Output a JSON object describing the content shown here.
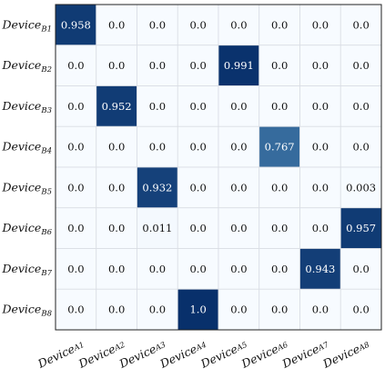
{
  "chart_data": {
    "type": "heatmap",
    "row_labels": [
      {
        "base": "Device",
        "sub": "B1"
      },
      {
        "base": "Device",
        "sub": "B2"
      },
      {
        "base": "Device",
        "sub": "B3"
      },
      {
        "base": "Device",
        "sub": "B4"
      },
      {
        "base": "Device",
        "sub": "B5"
      },
      {
        "base": "Device",
        "sub": "B6"
      },
      {
        "base": "Device",
        "sub": "B7"
      },
      {
        "base": "Device",
        "sub": "B8"
      }
    ],
    "col_labels": [
      {
        "base": "Device",
        "sub": "A1"
      },
      {
        "base": "Device",
        "sub": "A2"
      },
      {
        "base": "Device",
        "sub": "A3"
      },
      {
        "base": "Device",
        "sub": "A4"
      },
      {
        "base": "Device",
        "sub": "A5"
      },
      {
        "base": "Device",
        "sub": "A6"
      },
      {
        "base": "Device",
        "sub": "A7"
      },
      {
        "base": "Device",
        "sub": "A8"
      }
    ],
    "values": [
      [
        "0.958",
        "0.0",
        "0.0",
        "0.0",
        "0.0",
        "0.0",
        "0.0",
        "0.0"
      ],
      [
        "0.0",
        "0.0",
        "0.0",
        "0.0",
        "0.991",
        "0.0",
        "0.0",
        "0.0"
      ],
      [
        "0.0",
        "0.952",
        "0.0",
        "0.0",
        "0.0",
        "0.0",
        "0.0",
        "0.0"
      ],
      [
        "0.0",
        "0.0",
        "0.0",
        "0.0",
        "0.0",
        "0.767",
        "0.0",
        "0.0"
      ],
      [
        "0.0",
        "0.0",
        "0.932",
        "0.0",
        "0.0",
        "0.0",
        "0.0",
        "0.003"
      ],
      [
        "0.0",
        "0.0",
        "0.011",
        "0.0",
        "0.0",
        "0.0",
        "0.0",
        "0.957"
      ],
      [
        "0.0",
        "0.0",
        "0.0",
        "0.0",
        "0.0",
        "0.0",
        "0.943",
        "0.0"
      ],
      [
        "0.0",
        "0.0",
        "0.0",
        "1.0",
        "0.0",
        "0.0",
        "0.0",
        "0.0"
      ]
    ],
    "value_range": [
      0,
      1
    ],
    "colormap": {
      "low": "#f7fbff",
      "mid": "#6aaed6",
      "high": "#08306b",
      "light_text": "#ffffff",
      "dark_text": "#111111"
    }
  }
}
